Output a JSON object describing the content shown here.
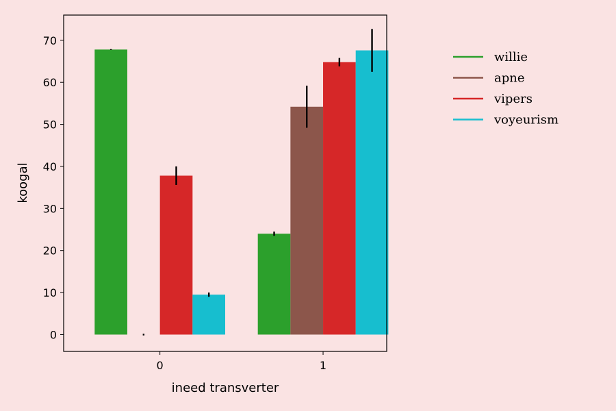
{
  "chart_data": {
    "type": "bar",
    "categories": [
      "0",
      "1"
    ],
    "xlabel": "ineed transverter",
    "ylabel": "koogal",
    "ylim": [
      -4,
      76
    ],
    "yticks": [
      0,
      10,
      20,
      30,
      40,
      50,
      60,
      70
    ],
    "legend_position": "right",
    "grid": false,
    "series": [
      {
        "name": "willie",
        "color": "#2ca02c",
        "values": [
          67.8,
          24.0
        ],
        "errors": [
          0.1,
          0.5
        ]
      },
      {
        "name": "apne",
        "color": "#8c564b",
        "values": [
          0.0,
          54.2
        ],
        "errors": [
          0.2,
          5.0
        ]
      },
      {
        "name": "vipers",
        "color": "#d62728",
        "values": [
          37.8,
          64.8
        ],
        "errors": [
          2.2,
          1.0
        ]
      },
      {
        "name": "voyeurism",
        "color": "#17becf",
        "values": [
          9.5,
          67.6
        ],
        "errors": [
          0.5,
          5.1
        ]
      }
    ]
  }
}
